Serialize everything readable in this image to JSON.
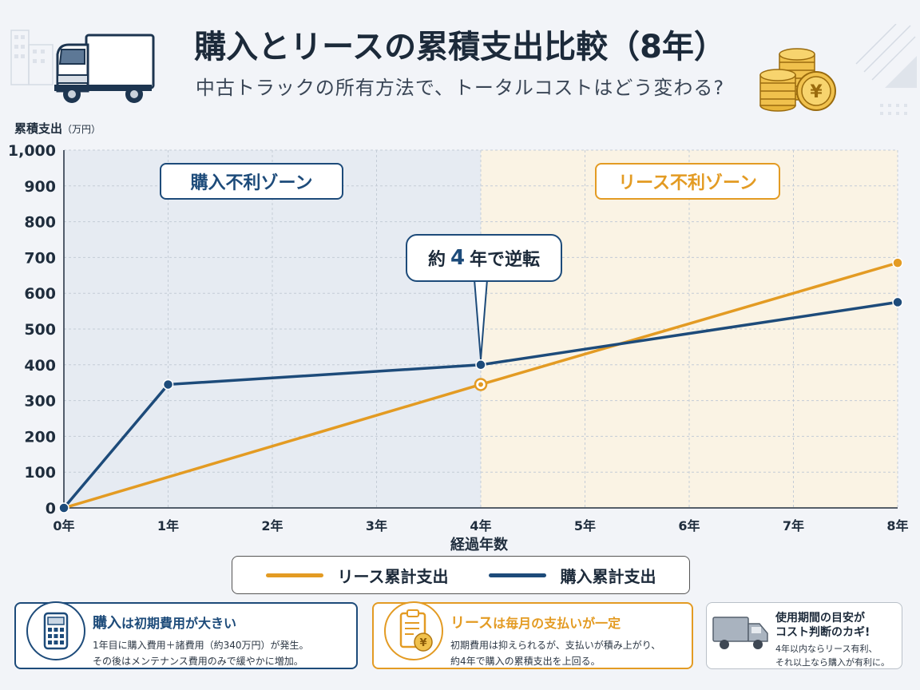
{
  "header": {
    "title": "購入とリースの累積支出比較（8年）",
    "subtitle": "中古トラックの所有方法で、トータルコストはどう変わる?"
  },
  "chart_data": {
    "type": "line",
    "title": "購入とリースの累積支出比較（8年）",
    "ylabel": "累積支出",
    "ylabel_unit": "（万円）",
    "xlabel": "経過年数",
    "x": [
      0,
      1,
      2,
      3,
      4,
      5,
      6,
      7,
      8
    ],
    "x_tick_labels": [
      "0年",
      "1年",
      "2年",
      "3年",
      "4年",
      "5年",
      "6年",
      "7年",
      "8年"
    ],
    "y_ticks": [
      0,
      100,
      200,
      300,
      400,
      500,
      600,
      700,
      800,
      900,
      1000
    ],
    "y_tick_labels": [
      "0",
      "100",
      "200",
      "300",
      "400",
      "500",
      "600",
      "700",
      "800",
      "900",
      "1,000"
    ],
    "ylim": [
      0,
      1000
    ],
    "xlim": [
      0,
      8
    ],
    "grid": true,
    "legend_position": "bottom",
    "series": [
      {
        "name": "リース累計支出",
        "color": "#e39b23",
        "x": [
          0,
          4,
          8
        ],
        "y": [
          0,
          345,
          685
        ],
        "markers_at": [
          4,
          8
        ]
      },
      {
        "name": "購入累計支出",
        "color": "#1d4b7a",
        "x": [
          0,
          1,
          4,
          8
        ],
        "y": [
          0,
          345,
          400,
          575
        ],
        "markers_at": [
          0,
          1,
          4,
          8
        ]
      }
    ],
    "zones": [
      {
        "label": "購入不利ゾーン",
        "x_range": [
          0,
          4
        ],
        "color": "#e6ebf2"
      },
      {
        "label": "リース不利ゾーン",
        "x_range": [
          4,
          8
        ],
        "color": "#faf3e4"
      }
    ],
    "annotation": {
      "prefix": "約",
      "number": "4",
      "suffix": "年で逆転",
      "x": 4
    }
  },
  "legend": {
    "lease_label": "リース累計支出",
    "buy_label": "購入累計支出"
  },
  "cards": {
    "buy": {
      "title_strong": "購入",
      "title_rest": "は初期費用が大きい",
      "line1": "1年目に購入費用＋諸費用（約340万円）が発生。",
      "line2": "その後はメンテナンス費用のみで緩やかに増加。",
      "icon": "calculator-icon"
    },
    "lease": {
      "title_strong": "リース",
      "title_rest": "は毎月の支払いが一定",
      "line1": "初期費用は抑えられるが、支払いが積み上がり、",
      "line2": "約4年で購入の累積支出を上回る。",
      "icon": "clipboard-yen-icon"
    },
    "tip": {
      "title1": "使用期間の目安が",
      "title2": "コスト判断のカギ!",
      "line1": "4年以内ならリース有利、",
      "line2": "それ以上なら購入が有利に。",
      "icon": "truck-icon"
    }
  },
  "colors": {
    "navy": "#1d4b7a",
    "orange": "#e39b23"
  }
}
